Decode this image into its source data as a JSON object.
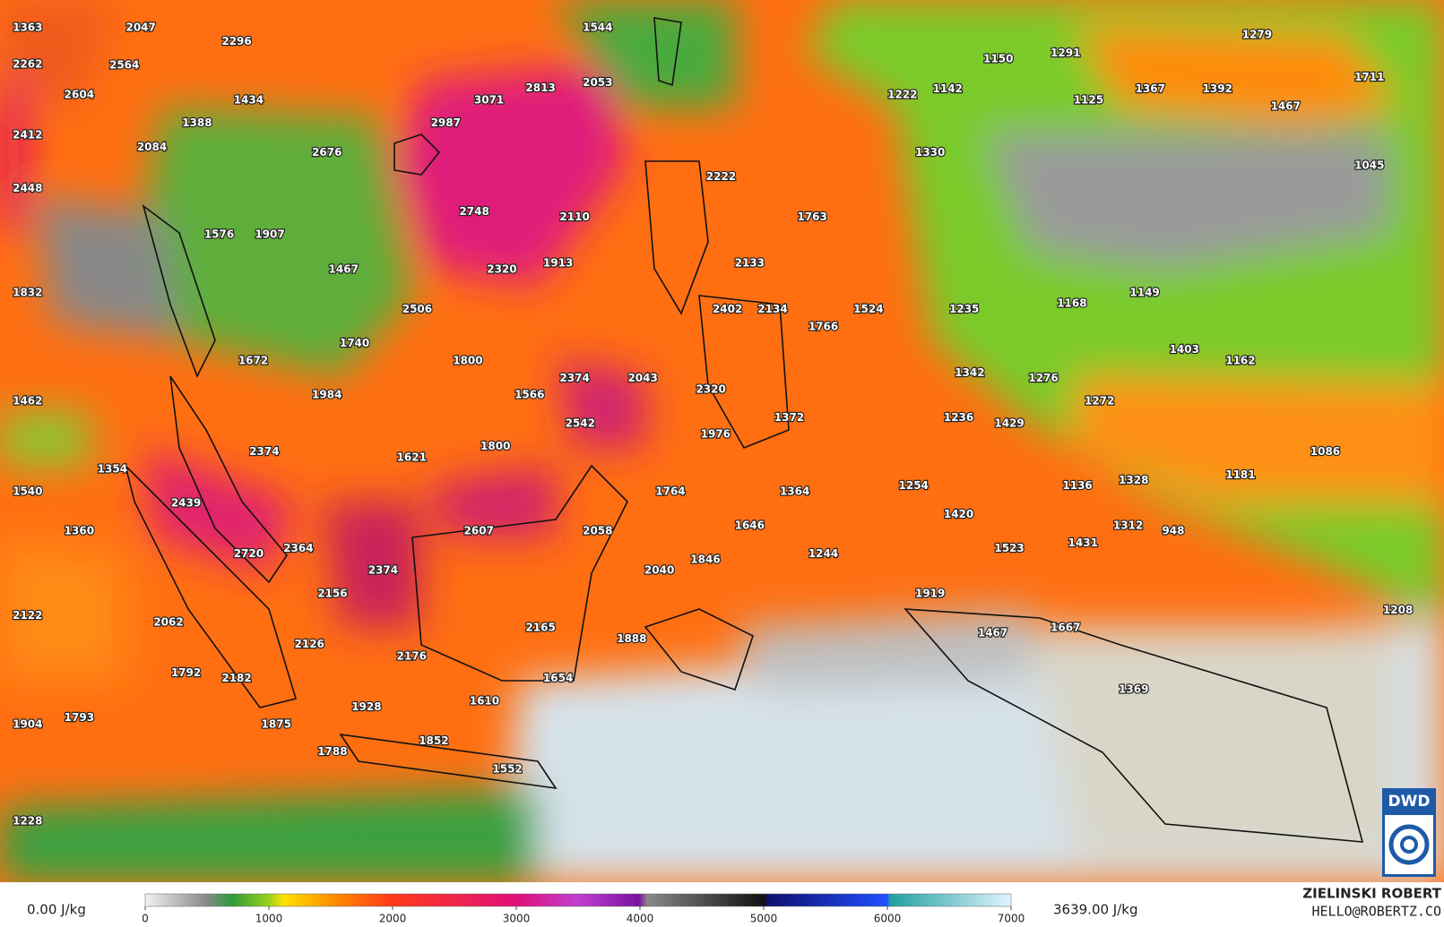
{
  "map": {
    "labels": [
      1363,
      2047,
      2296,
      1544,
      1279,
      2262,
      2564,
      1150,
      1291,
      1711,
      2604,
      1434,
      3071,
      2813,
      2053,
      1222,
      1142,
      1125,
      1367,
      1392,
      1467,
      1388,
      2987,
      2412,
      2084,
      2676,
      1330,
      1045,
      2448,
      2222,
      2748,
      2110,
      1763,
      1576,
      1907,
      2133,
      1913,
      1467,
      2320,
      1832,
      1149,
      1168,
      2506,
      2402,
      2134,
      1524,
      1235,
      1766,
      1740,
      1403,
      1672,
      1800,
      1162,
      2374,
      2043,
      1342,
      1276,
      1984,
      1566,
      2320,
      1462,
      1272,
      1372,
      1236,
      1429,
      2542,
      1976,
      1800,
      2374,
      1621,
      1086,
      1354,
      1181,
      1540,
      1764,
      1364,
      1254,
      1136,
      1328,
      2439,
      1420,
      1360,
      2607,
      2058,
      1646,
      1312,
      948,
      2364,
      1523,
      1431,
      2720,
      1846,
      1244,
      2374,
      2040,
      2156,
      1919,
      2122,
      1208,
      2062,
      2165,
      1667,
      1467,
      1888,
      2126,
      2176,
      1792,
      2182,
      1654,
      1369,
      1610,
      1928,
      1904,
      1793,
      1875,
      1852,
      1788,
      1552,
      1228
    ]
  },
  "colorbar": {
    "min_label": "0.00 J/kg",
    "max_label": "3639.00 J/kg",
    "lim": [
      0,
      7000
    ],
    "ticks": [
      0,
      1000,
      2000,
      3000,
      4000,
      5000,
      6000,
      7000
    ]
  },
  "credit": {
    "name": "ZIELINSKI ROBERT",
    "email": "HELLO@ROBERTZ.CO",
    "logo": "DWD"
  }
}
